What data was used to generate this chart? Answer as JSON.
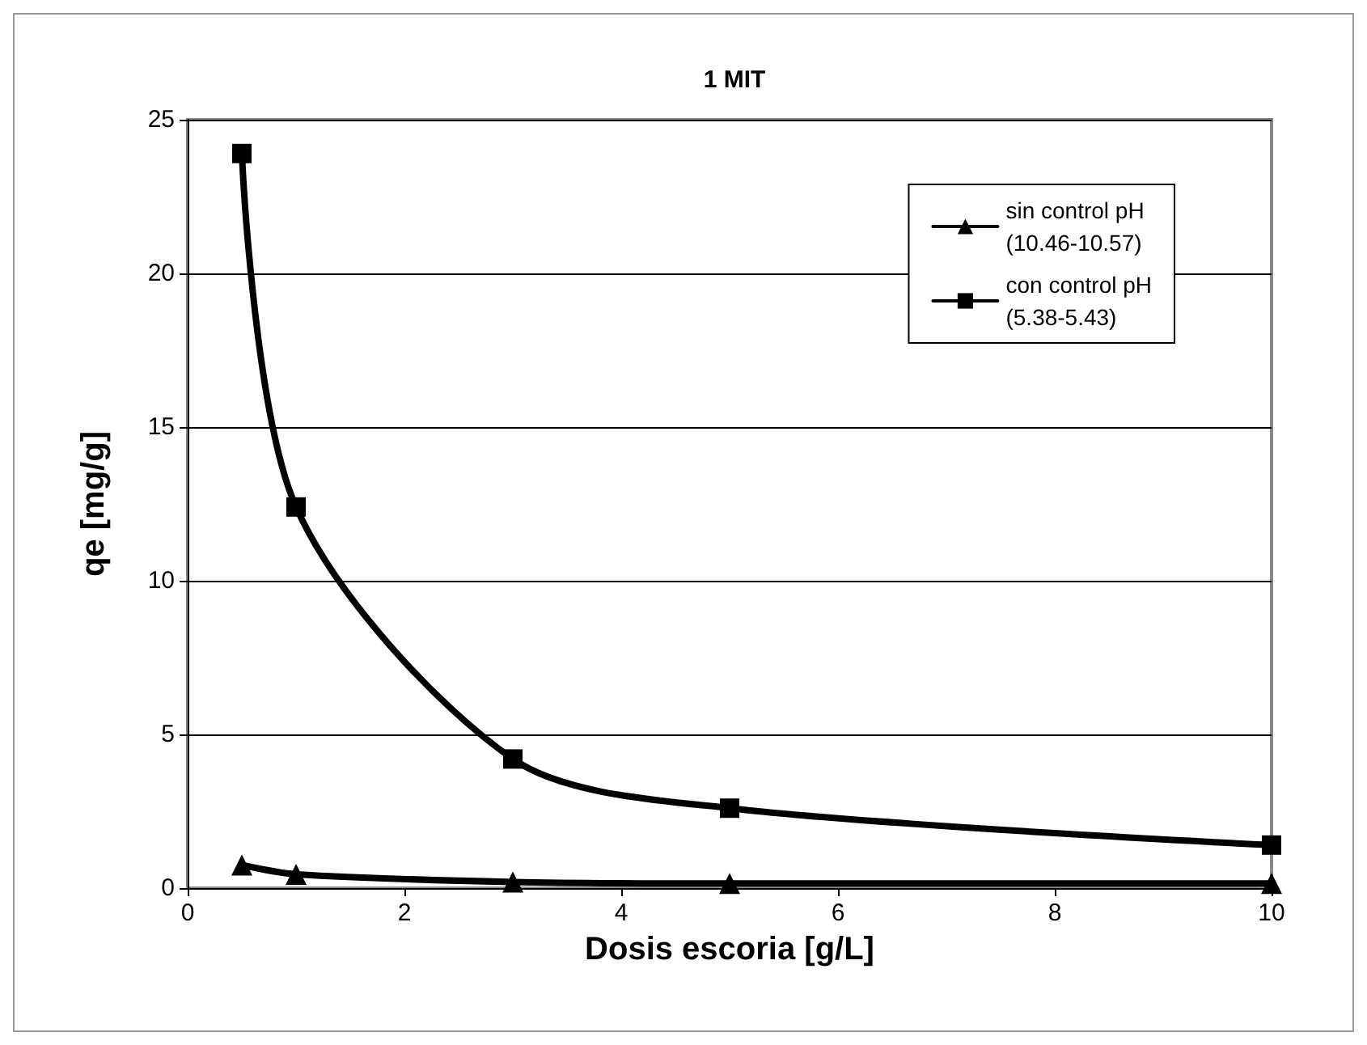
{
  "chart_data": {
    "type": "line",
    "title": "1 MIT",
    "xlabel": "Dosis escoria [g/L]",
    "ylabel": "qe [mg/g]",
    "x": [
      0.5,
      1,
      3,
      5,
      10
    ],
    "series": [
      {
        "name": "sin control pH\n(10.46-10.57)",
        "color": "#000000",
        "marker": "triangle",
        "values": [
          0.75,
          0.45,
          0.2,
          0.15,
          0.15
        ]
      },
      {
        "name": "con control pH\n(5.38-5.43)",
        "color": "#000000",
        "marker": "square",
        "values": [
          23.9,
          12.4,
          4.2,
          2.6,
          1.4
        ]
      }
    ],
    "xlim": [
      0,
      10
    ],
    "xticks": [
      0,
      2,
      4,
      6,
      8,
      10
    ],
    "ylim": [
      0,
      25
    ],
    "yticks": [
      0,
      5,
      10,
      15,
      20,
      25
    ],
    "grid": "y",
    "legend": "top right",
    "line_style": "solid"
  }
}
